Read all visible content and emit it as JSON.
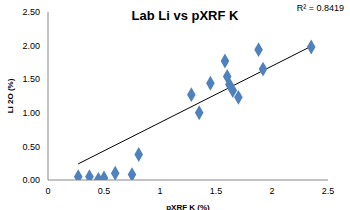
{
  "chart_data": {
    "type": "scatter",
    "title": "Lab Li vs pXRF K",
    "x_label": "pXRF K (%)",
    "y_label": "Li 2O (%)",
    "annotations": [
      "R² = 0.8419"
    ],
    "x": [
      0.27,
      0.37,
      0.45,
      0.5,
      0.6,
      0.75,
      0.81,
      1.28,
      1.35,
      1.45,
      1.58,
      1.6,
      1.62,
      1.65,
      1.7,
      1.88,
      1.92,
      2.35
    ],
    "values": [
      0.05,
      0.05,
      0.01,
      0.03,
      0.1,
      0.08,
      0.38,
      1.27,
      1.0,
      1.44,
      1.77,
      1.54,
      1.42,
      1.33,
      1.23,
      1.94,
      1.65,
      1.98
    ],
    "color": "#4f81bd",
    "marker": "diamond",
    "trendline": {
      "x": [
        0.27,
        2.35
      ],
      "values": [
        0.24,
        1.99
      ],
      "color": "#000000",
      "line_style": "solid"
    },
    "xlim": [
      0,
      2.5
    ],
    "xticks": [
      0,
      0.5,
      1,
      1.5,
      2,
      2.5
    ],
    "ylim": [
      0,
      2.5
    ],
    "yticks": [
      {
        "value": 0,
        "label": "0.00"
      },
      {
        "value": 0.5,
        "label": "0.50"
      },
      {
        "value": 1,
        "label": "1.00"
      },
      {
        "value": 1.5,
        "label": "1.50"
      },
      {
        "value": 2,
        "label": "2.00"
      },
      {
        "value": 2.5,
        "label": "2.50"
      }
    ],
    "grid": false
  }
}
